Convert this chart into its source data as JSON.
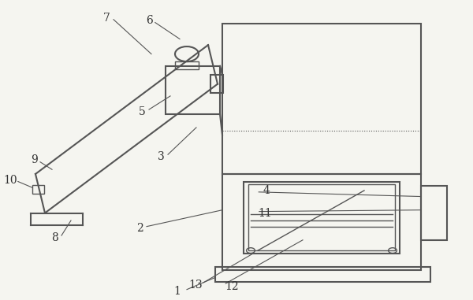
{
  "bg_color": "#f0f0f0",
  "line_color": "#555555",
  "line_width": 1.5,
  "fig_bg": "#f5f5f0",
  "label_color": "#333333",
  "label_fontsize": 10,
  "label_font": "serif"
}
